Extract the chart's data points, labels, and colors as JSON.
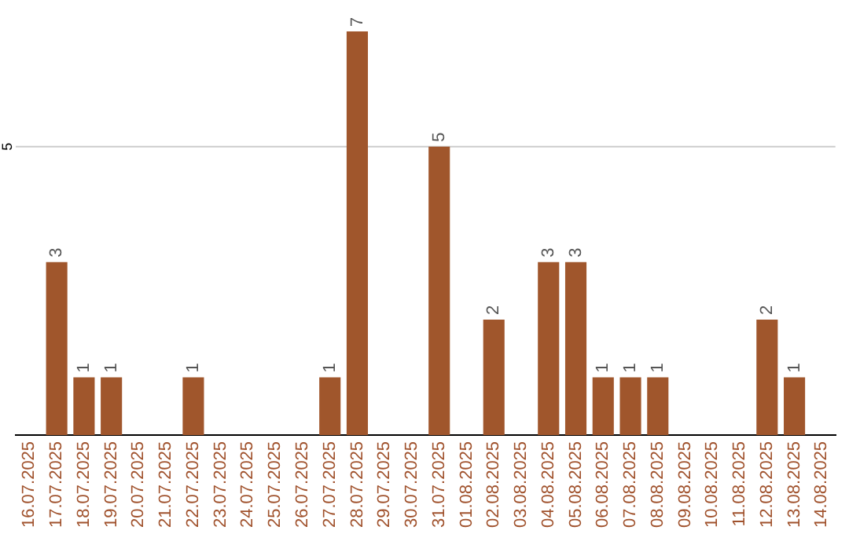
{
  "chart_data": {
    "type": "bar",
    "categories": [
      "16.07.2025",
      "17.07.2025",
      "18.07.2025",
      "19.07.2025",
      "20.07.2025",
      "21.07.2025",
      "22.07.2025",
      "23.07.2025",
      "24.07.2025",
      "25.07.2025",
      "26.07.2025",
      "27.07.2025",
      "28.07.2025",
      "29.07.2025",
      "30.07.2025",
      "31.07.2025",
      "01.08.2025",
      "02.08.2025",
      "03.08.2025",
      "04.08.2025",
      "05.08.2025",
      "06.08.2025",
      "07.08.2025",
      "08.08.2025",
      "09.08.2025",
      "10.08.2025",
      "11.08.2025",
      "12.08.2025",
      "13.08.2025",
      "14.08.2025"
    ],
    "values": [
      0,
      3,
      1,
      1,
      0,
      0,
      1,
      0,
      0,
      0,
      0,
      1,
      7,
      0,
      0,
      5,
      0,
      2,
      0,
      3,
      3,
      1,
      1,
      1,
      0,
      0,
      0,
      2,
      1,
      0
    ],
    "value_labels": [
      null,
      "3",
      "1",
      "1",
      null,
      null,
      "1",
      null,
      null,
      null,
      null,
      "1",
      "7",
      null,
      null,
      "5",
      null,
      "2",
      null,
      "3",
      "3",
      "1",
      "1",
      "1",
      null,
      null,
      null,
      "2",
      "1",
      null
    ],
    "color": "#a0562c",
    "ref_lines": [
      {
        "axis": "y",
        "value": 5,
        "label": "5",
        "color": "#cccccc"
      }
    ],
    "legend": false
  }
}
